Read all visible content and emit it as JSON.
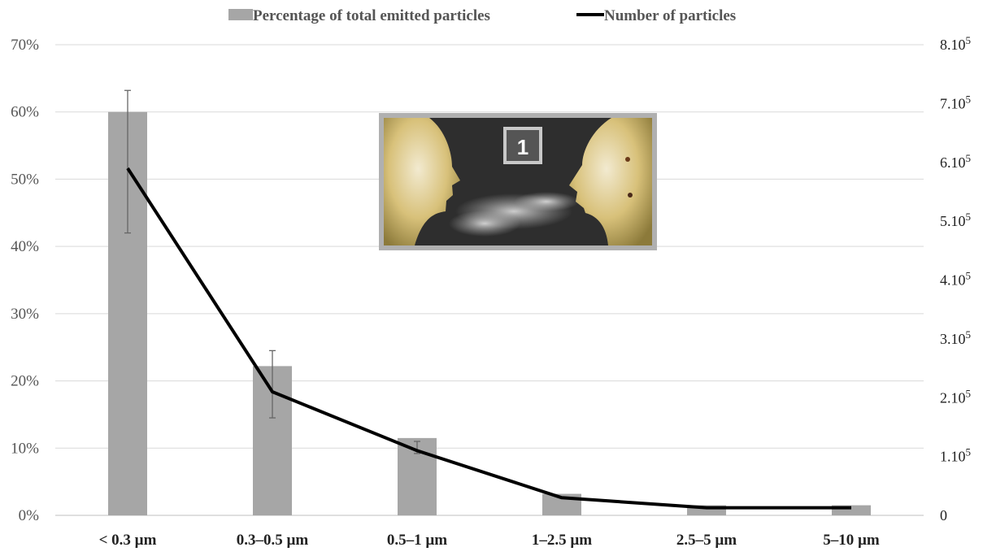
{
  "chart_data": {
    "type": "bar",
    "categories": [
      "< 0.3 µm",
      "0.3–0.5 µm",
      "0.5–1 µm",
      "1–2.5 µm",
      "2.5–5 µm",
      "5–10 µm"
    ],
    "series": [
      {
        "name": "Percentage of total emitted particles",
        "type": "bar",
        "axis": "left",
        "values": [
          60.0,
          22.2,
          11.5,
          3.2,
          1.5,
          1.5
        ],
        "error": [
          [
            42.0,
            63.2
          ],
          [
            14.5,
            24.5
          ],
          [
            9.2,
            11.0
          ],
          null,
          null,
          null
        ],
        "color": "#a6a6a6"
      },
      {
        "name": "Number of particles",
        "type": "line",
        "axis": "right",
        "values": [
          590000,
          210000,
          110000,
          30000,
          13000,
          13000
        ],
        "color": "#000000"
      }
    ],
    "y_left": {
      "ticks": [
        "0%",
        "10%",
        "20%",
        "30%",
        "40%",
        "50%",
        "60%",
        "70%"
      ],
      "ylim": [
        0,
        70
      ]
    },
    "y_right": {
      "ticks": [
        {
          "base": "0",
          "exp": ""
        },
        {
          "base": "1.10",
          "exp": "5"
        },
        {
          "base": "2.10",
          "exp": "5"
        },
        {
          "base": "3.10",
          "exp": "5"
        },
        {
          "base": "4.10",
          "exp": "5"
        },
        {
          "base": "5.10",
          "exp": "5"
        },
        {
          "base": "6.10",
          "exp": "5"
        },
        {
          "base": "7.10",
          "exp": "5"
        },
        {
          "base": "8.10",
          "exp": "5"
        }
      ],
      "ylim": [
        0,
        800000
      ]
    },
    "grid": true,
    "legend_position": "top-center",
    "inset": {
      "badge_text": "1"
    }
  }
}
